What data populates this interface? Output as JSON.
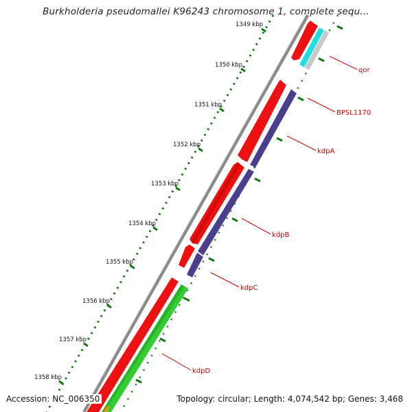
{
  "title": "Burkholderia pseudomallei K96243 chromosome 1, complete sequ...",
  "accession": "Accession: NC_006350",
  "topology": "Topology: circular; Length: 4,074,542 bp; Genes: 3,468",
  "ticks": [
    "1349 kbp",
    "1350 kbp",
    "1351 kbp",
    "1352 kbp",
    "1353 kbp",
    "1354 kbp",
    "1355 kbp",
    "1356 kbp",
    "1357 kbp",
    "1358 kbp"
  ],
  "genes": [
    "qor",
    "BPSL1170",
    "kdpA",
    "kdpB",
    "kdpC",
    "kdpD"
  ],
  "colors": {
    "red_track": "#ee1111",
    "cyan_track": "#22dddd",
    "purple_track": "#4a3f8f",
    "green_track": "#33cc33",
    "backbone": "#888888",
    "dots_green": "#117711",
    "label_red": "#cc0000"
  }
}
